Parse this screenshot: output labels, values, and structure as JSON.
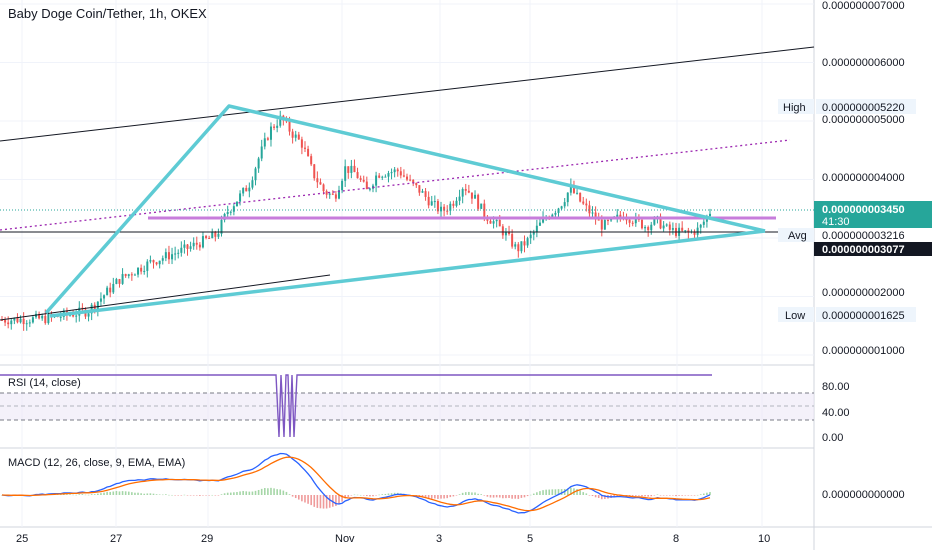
{
  "header": {
    "title": "Baby Doge Coin/Tether, 1h, OKEX"
  },
  "chart_data": {
    "type": "candlestick",
    "title": "Baby Doge Coin/Tether, 1h, OKEX",
    "x_ticks": [
      "25",
      "27",
      "29",
      "Nov",
      "3",
      "5",
      "8",
      "10"
    ],
    "y_ticks": [
      "0.000000007000",
      "0.000000006000",
      "0.000000005000",
      "0.000000004000",
      "0.000000002000",
      "0.000000001000"
    ],
    "y_range": [
      7e-10,
      7.2e-09
    ],
    "markers": {
      "high": {
        "label": "High",
        "value": "0.000000005220"
      },
      "low": {
        "label": "Low",
        "value": "0.000000001625"
      },
      "avg": {
        "label": "Avg",
        "value": "0.000000003216"
      },
      "current": {
        "value": "0.000000003450",
        "countdown": "41:30"
      },
      "reference": {
        "value": "0.000000003077"
      }
    },
    "path_points": [
      [
        0,
        1.6
      ],
      [
        4,
        1.62
      ],
      [
        8,
        1.75
      ],
      [
        11,
        2.3
      ],
      [
        14,
        2.6
      ],
      [
        17,
        2.8
      ],
      [
        20,
        3.05
      ],
      [
        21,
        3.45
      ],
      [
        23,
        3.9
      ],
      [
        24,
        4.4
      ],
      [
        25,
        4.85
      ],
      [
        26,
        5.05
      ],
      [
        27,
        4.8
      ],
      [
        28,
        4.6
      ],
      [
        29,
        4.1
      ],
      [
        30,
        3.8
      ],
      [
        31,
        3.7
      ],
      [
        32,
        4.2
      ],
      [
        33,
        4.1
      ],
      [
        34,
        3.8
      ],
      [
        35,
        4.1
      ],
      [
        37,
        4.15
      ],
      [
        38,
        3.95
      ],
      [
        39,
        3.8
      ],
      [
        40,
        3.6
      ],
      [
        41,
        3.45
      ],
      [
        42,
        3.6
      ],
      [
        43,
        3.9
      ],
      [
        44,
        3.7
      ],
      [
        45,
        3.4
      ],
      [
        46,
        3.25
      ],
      [
        47,
        3.05
      ],
      [
        48,
        2.8
      ],
      [
        49,
        2.95
      ],
      [
        50,
        3.2
      ],
      [
        51,
        3.4
      ],
      [
        52,
        3.55
      ],
      [
        53,
        3.85
      ],
      [
        54,
        3.6
      ],
      [
        55,
        3.4
      ],
      [
        56,
        3.2
      ],
      [
        57,
        3.3
      ],
      [
        58,
        3.4
      ],
      [
        59,
        3.3
      ],
      [
        60,
        3.2
      ],
      [
        61,
        3.3
      ],
      [
        62,
        3.15
      ],
      [
        63,
        3.1
      ],
      [
        64,
        3.08
      ],
      [
        65,
        3.15
      ],
      [
        66,
        3.45
      ]
    ],
    "rsi": {
      "label": "RSI (14, close)",
      "ticks": [
        "80.00",
        "40.00",
        "0.00"
      ]
    },
    "macd": {
      "label": "MACD (12, 26, close, 9, EMA, EMA)",
      "ticks": [
        "0.000000000000"
      ]
    },
    "colors": {
      "up": "#26a69a",
      "down": "#ef5350",
      "trend": "#5ecbd4",
      "level": "#c77ddb",
      "channel": "#9c27b0",
      "rsi": "#7e57c2",
      "macd": "#2962ff",
      "signal": "#ff6d00",
      "current": "#26a69a"
    }
  }
}
